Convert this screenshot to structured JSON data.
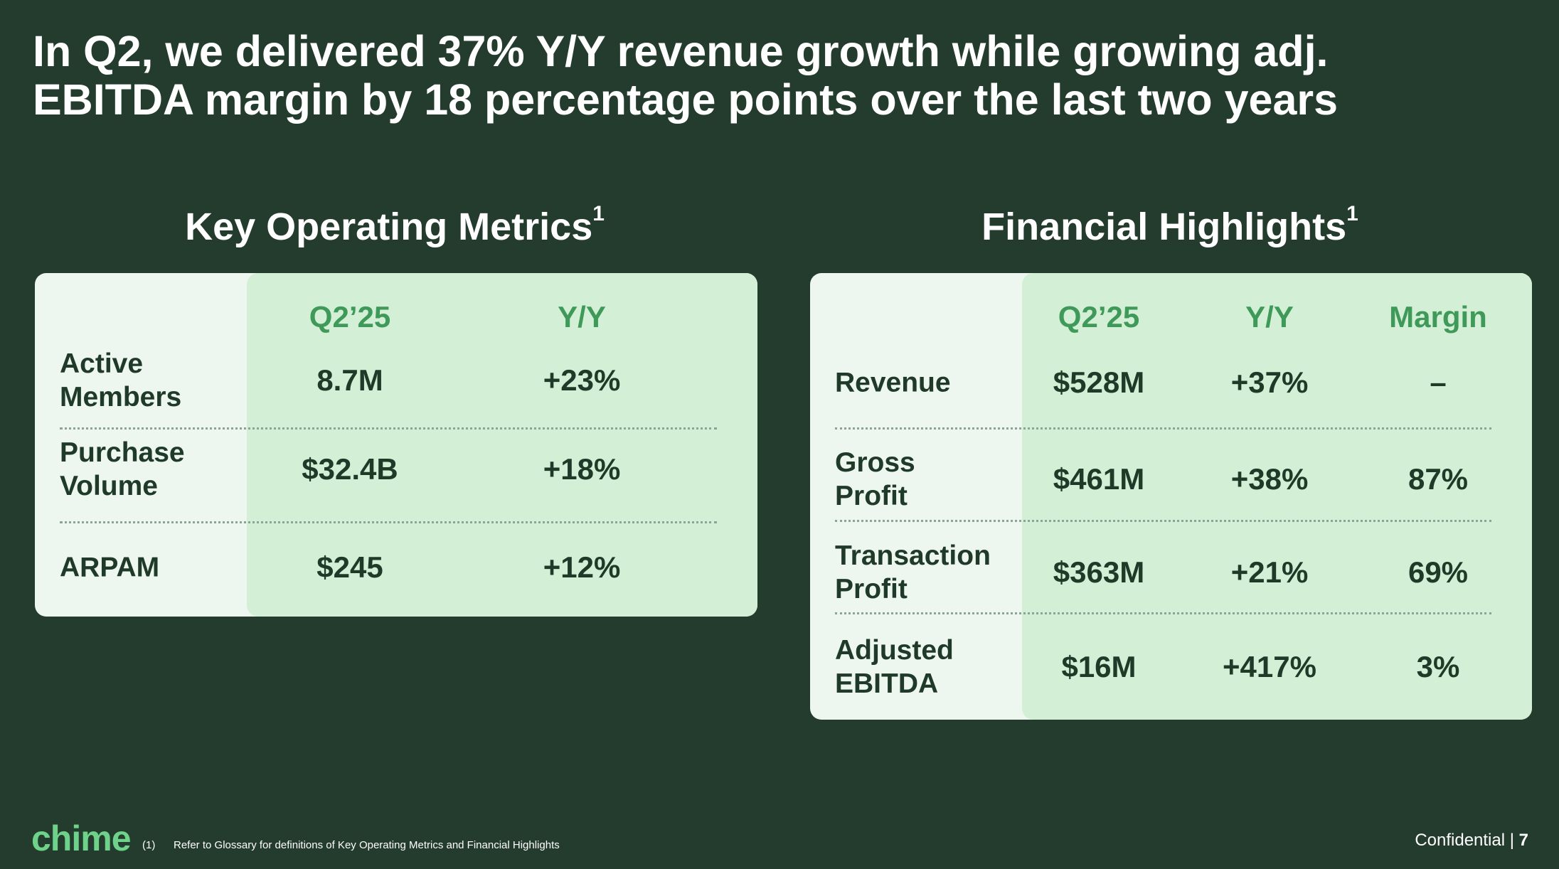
{
  "header": {
    "title_line1": "In Q2, we delivered 37% Y/Y revenue growth while growing adj.",
    "title_line2": "EBITDA margin by 18 percentage points over the last two years"
  },
  "key_operating_metrics": {
    "title": "Key Operating Metrics",
    "footnote_marker": "1",
    "columns": [
      "Q2’25",
      "Y/Y"
    ],
    "rows": [
      {
        "label": "Active Members",
        "values": [
          "8.7M",
          "+23%"
        ]
      },
      {
        "label": "Purchase Volume",
        "values": [
          "$32.4B",
          "+18%"
        ]
      },
      {
        "label": "ARPAM",
        "values": [
          "$245",
          "+12%"
        ]
      }
    ]
  },
  "financial_highlights": {
    "title": "Financial Highlights",
    "footnote_marker": "1",
    "columns": [
      "Q2’25",
      "Y/Y",
      "Margin"
    ],
    "rows": [
      {
        "label": "Revenue",
        "values": [
          "$528M",
          "+37%",
          "–"
        ]
      },
      {
        "label": "Gross Profit",
        "values": [
          "$461M",
          "+38%",
          "87%"
        ]
      },
      {
        "label": "Transaction Profit",
        "values": [
          "$363M",
          "+21%",
          "69%"
        ]
      },
      {
        "label": "Adjusted EBITDA",
        "values": [
          "$16M",
          "+417%",
          "3%"
        ]
      }
    ]
  },
  "footer": {
    "logo": "chime",
    "footnote_number": "(1)",
    "footnote": "Refer to Glossary for definitions of Key Operating Metrics and Financial Highlights",
    "confidential": "Confidential",
    "separator": "|",
    "page": "7"
  }
}
